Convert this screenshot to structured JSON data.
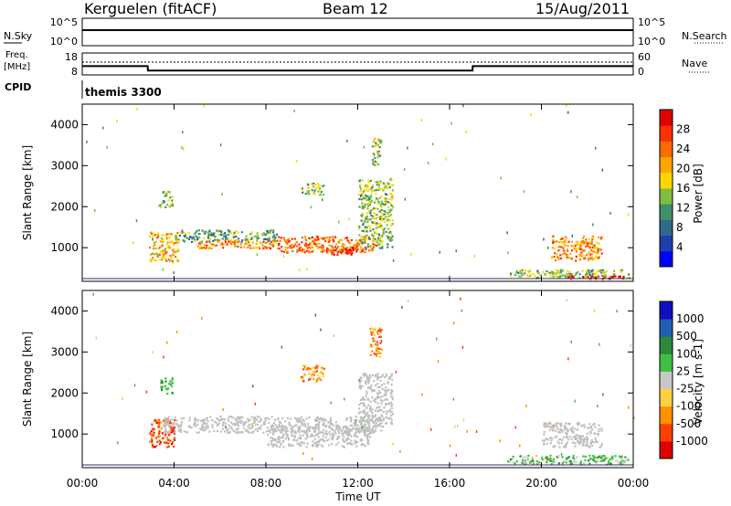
{
  "header": {
    "station": "Kerguelen (fitACF)",
    "beam": "Beam 12",
    "date": "15/Aug/2011"
  },
  "status_panels": {
    "nsky": {
      "label": "N.Sky",
      "ticks_left": [
        "10^5",
        "10^0"
      ]
    },
    "nsearch": {
      "label": "N.Search",
      "ticks_right": [
        "10^5",
        "10^0"
      ]
    },
    "freq": {
      "label_line1": "Freq.",
      "label_line2": "[MHz]",
      "ticks_left": [
        "18",
        "8"
      ]
    },
    "nave": {
      "label": "Nave",
      "ticks_right": [
        "60",
        "0"
      ]
    },
    "cpid": {
      "label": "CPID",
      "program": "themis 3300"
    }
  },
  "colors": {
    "power_scale": [
      "#0000ff",
      "#1f3fb0",
      "#2f6a8a",
      "#3f8f6a",
      "#7fbf3f",
      "#ffd700",
      "#ffa500",
      "#ff6a00",
      "#ff3000",
      "#e00000"
    ],
    "velocity_scale": [
      "#1010c0",
      "#2060b0",
      "#2a8a3a",
      "#40c040",
      "#c8c8c8",
      "#ffd040",
      "#ff9000",
      "#ff4000",
      "#e00000"
    ],
    "ground_scatter": "#c0c0c0"
  },
  "chart_data": [
    {
      "type": "heatmap",
      "name": "power",
      "xlabel": "",
      "ylabel": "Slant Range [km]",
      "xlim": [
        0,
        24
      ],
      "ylim": [
        180,
        4500
      ],
      "y_ticks": [
        "1000",
        "2000",
        "3000",
        "4000"
      ],
      "colorbar": {
        "label": "Power [dB]",
        "ticks": [
          "4",
          "8",
          "12",
          "16",
          "20",
          "24",
          "28"
        ],
        "range": [
          0,
          32
        ]
      },
      "scatter_regions": [
        {
          "x": [
            2.9,
            4.2
          ],
          "y": [
            650,
            1400
          ],
          "level": 20
        },
        {
          "x": [
            4.0,
            8.5
          ],
          "y": [
            1150,
            1450
          ],
          "level": 12
        },
        {
          "x": [
            5.0,
            8.5
          ],
          "y": [
            1000,
            1200
          ],
          "level": 22
        },
        {
          "x": [
            8.5,
            12.8
          ],
          "y": [
            900,
            1300
          ],
          "level": 24
        },
        {
          "x": [
            10.5,
            12.0
          ],
          "y": [
            850,
            1050
          ],
          "level": 28
        },
        {
          "x": [
            12.0,
            13.5
          ],
          "y": [
            1000,
            2700
          ],
          "level": 14
        },
        {
          "x": [
            12.6,
            13.0
          ],
          "y": [
            3000,
            3700
          ],
          "level": 16
        },
        {
          "x": [
            3.3,
            3.9
          ],
          "y": [
            2000,
            2400
          ],
          "level": 14
        },
        {
          "x": [
            9.5,
            10.5
          ],
          "y": [
            2300,
            2600
          ],
          "level": 14
        },
        {
          "x": [
            20.4,
            22.6
          ],
          "y": [
            700,
            1300
          ],
          "level": 22
        },
        {
          "x": [
            18.5,
            23.8
          ],
          "y": [
            280,
            480
          ],
          "level": 14
        },
        {
          "x": [
            21.0,
            23.6
          ],
          "y": [
            260,
            330
          ],
          "level": 30
        }
      ]
    },
    {
      "type": "heatmap",
      "name": "velocity",
      "xlabel": "Time UT",
      "ylabel": "Slant Range [km]",
      "xlim": [
        0,
        24
      ],
      "ylim": [
        180,
        4500
      ],
      "x_ticks": [
        "00:00",
        "04:00",
        "08:00",
        "12:00",
        "16:00",
        "20:00",
        "00:00"
      ],
      "y_ticks": [
        "1000",
        "2000",
        "3000",
        "4000"
      ],
      "colorbar": {
        "label": "Velocity [m s-1]",
        "ticks": [
          "1000",
          "500",
          "100",
          "25",
          "-25",
          "-100",
          "-500",
          "-1000"
        ]
      },
      "scatter_regions": [
        {
          "x": [
            2.9,
            4.0
          ],
          "y": [
            700,
            1400
          ],
          "level": "-500"
        },
        {
          "x": [
            3.5,
            13.0
          ],
          "y": [
            1050,
            1450
          ],
          "level": "ground"
        },
        {
          "x": [
            8.0,
            12.5
          ],
          "y": [
            700,
            1200
          ],
          "level": "ground"
        },
        {
          "x": [
            12.0,
            13.5
          ],
          "y": [
            1200,
            2500
          ],
          "level": "ground"
        },
        {
          "x": [
            12.5,
            13.0
          ],
          "y": [
            2900,
            3600
          ],
          "level": "-100"
        },
        {
          "x": [
            3.3,
            3.9
          ],
          "y": [
            2000,
            2400
          ],
          "level": "100"
        },
        {
          "x": [
            9.5,
            10.5
          ],
          "y": [
            2300,
            2700
          ],
          "level": "-100"
        },
        {
          "x": [
            20.0,
            22.6
          ],
          "y": [
            700,
            1300
          ],
          "level": "ground"
        },
        {
          "x": [
            18.5,
            23.8
          ],
          "y": [
            280,
            500
          ],
          "level": "100"
        }
      ]
    },
    {
      "type": "line",
      "name": "status",
      "series": [
        {
          "name": "N.Sky",
          "x": [
            0,
            24
          ],
          "values": [
            100000,
            100000
          ]
        },
        {
          "name": "Freq.",
          "x": [
            0,
            2.85,
            2.86,
            17.0,
            17.01,
            24
          ],
          "values": [
            12,
            12,
            10,
            10,
            12,
            12
          ]
        },
        {
          "name": "Nave",
          "x": [
            0,
            24
          ],
          "values": [
            25,
            25
          ]
        }
      ]
    }
  ]
}
